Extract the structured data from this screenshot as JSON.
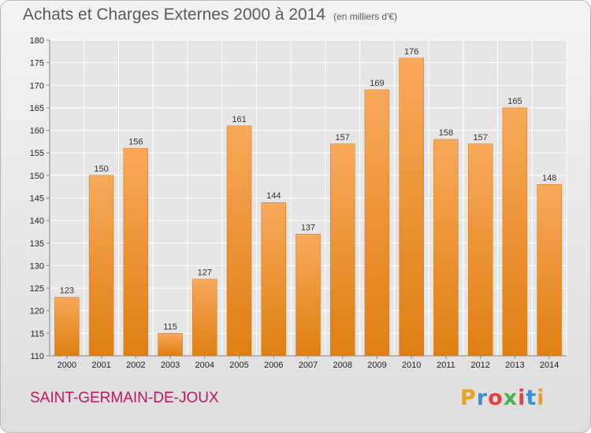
{
  "header": {
    "title": "Achats et Charges Externes 2000 à 2014",
    "unit": "(en milliers d'€)"
  },
  "footer": {
    "commune": "SAINT-GERMAIN-DE-JOUX",
    "logo_text": "Proxiti",
    "logo_colors": [
      "#e8a020",
      "#3b8ed8",
      "#e84040",
      "#4caf50",
      "#e84040",
      "#3b8ed8",
      "#e8a020"
    ]
  },
  "chart_data": {
    "type": "bar",
    "title": "Achats et Charges Externes 2000 à 2014",
    "subtitle": "(en milliers d'€)",
    "categories": [
      "2000",
      "2001",
      "2002",
      "2003",
      "2004",
      "2005",
      "2006",
      "2007",
      "2008",
      "2009",
      "2010",
      "2011",
      "2012",
      "2013",
      "2014"
    ],
    "values": [
      123,
      150,
      156,
      115,
      127,
      161,
      144,
      137,
      157,
      169,
      176,
      158,
      157,
      165,
      148
    ],
    "ylim": [
      110,
      180
    ],
    "yticks": [
      110,
      115,
      120,
      125,
      130,
      135,
      140,
      145,
      150,
      155,
      160,
      165,
      170,
      175,
      180
    ],
    "grid": true,
    "bar_color": "#f0922e",
    "bar_color_light": "#f7a95a",
    "bar_color_dark": "#e07e12"
  }
}
